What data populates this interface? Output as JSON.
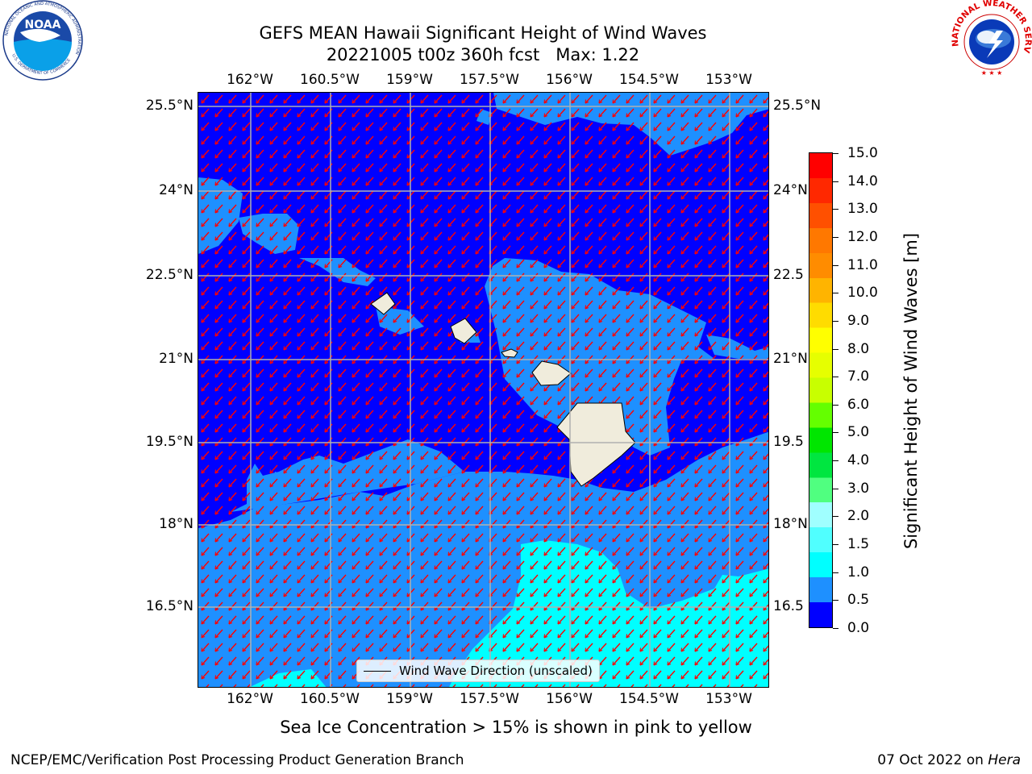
{
  "title": {
    "line1": "GEFS MEAN Hawaii Significant Height of Wind Waves",
    "line2": "20221005 t00z 360h fcst   Max: 1.22"
  },
  "logos": {
    "left": {
      "name": "noaa-logo",
      "text": "NOAA",
      "ring_text": "NATIONAL OCEANIC AND ATMOSPHERIC ADMINISTRATION",
      "ring_text_bottom": "U.S. DEPARTMENT OF COMMERCE"
    },
    "right": {
      "name": "nws-logo",
      "ring_text": "NATIONAL WEATHER SERVICE"
    }
  },
  "map": {
    "lon_ticks": [
      "162°W",
      "160.5°W",
      "159°W",
      "157.5°W",
      "156°W",
      "154.5°W",
      "153°W"
    ],
    "lat_ticks": [
      "25.5°N",
      "24°N",
      "22.5°N",
      "21°N",
      "19.5°N",
      "18°N",
      "16.5°N"
    ],
    "lat_ticks_right": [
      "25.5°N",
      "24°N",
      "22.5",
      "21°N",
      "19.5",
      "18°N",
      "16.5"
    ],
    "legend_label": "Wind Wave Direction (unscaled)",
    "colors": {
      "level_0_0_5": "#0000ff",
      "level_0_5_1_0": "#1e90ff",
      "level_1_0_1_5": "#00ffff",
      "land": "#f0ecdc",
      "arrows": "#ff0000",
      "grid": "#b0b0b0"
    }
  },
  "colorbar": {
    "title": "Significant Height of Wind Waves [m]",
    "labels": [
      "15.0",
      "14.0",
      "13.0",
      "12.0",
      "11.0",
      "10.0",
      "9.0",
      "8.0",
      "7.0",
      "6.0",
      "5.0",
      "4.0",
      "3.0",
      "2.0",
      "1.5",
      "1.0",
      "0.5",
      "0.0"
    ],
    "colors_top_to_bottom": [
      "#ff0000",
      "#ff2800",
      "#ff5000",
      "#ff7800",
      "#ff8c00",
      "#ffb400",
      "#ffdc00",
      "#ffff00",
      "#e6ff00",
      "#c8ff00",
      "#64ff00",
      "#00e600",
      "#00e640",
      "#50ff80",
      "#a0ffff",
      "#50ffff",
      "#00ffff",
      "#1e90ff",
      "#0000ff"
    ]
  },
  "note": "Sea Ice Concentration > 15% is shown in pink to yellow",
  "footer": {
    "left": "NCEP/EMC/Verification Post Processing Product Generation Branch",
    "right_date": "07 Oct 2022 on ",
    "right_machine": "Hera"
  }
}
